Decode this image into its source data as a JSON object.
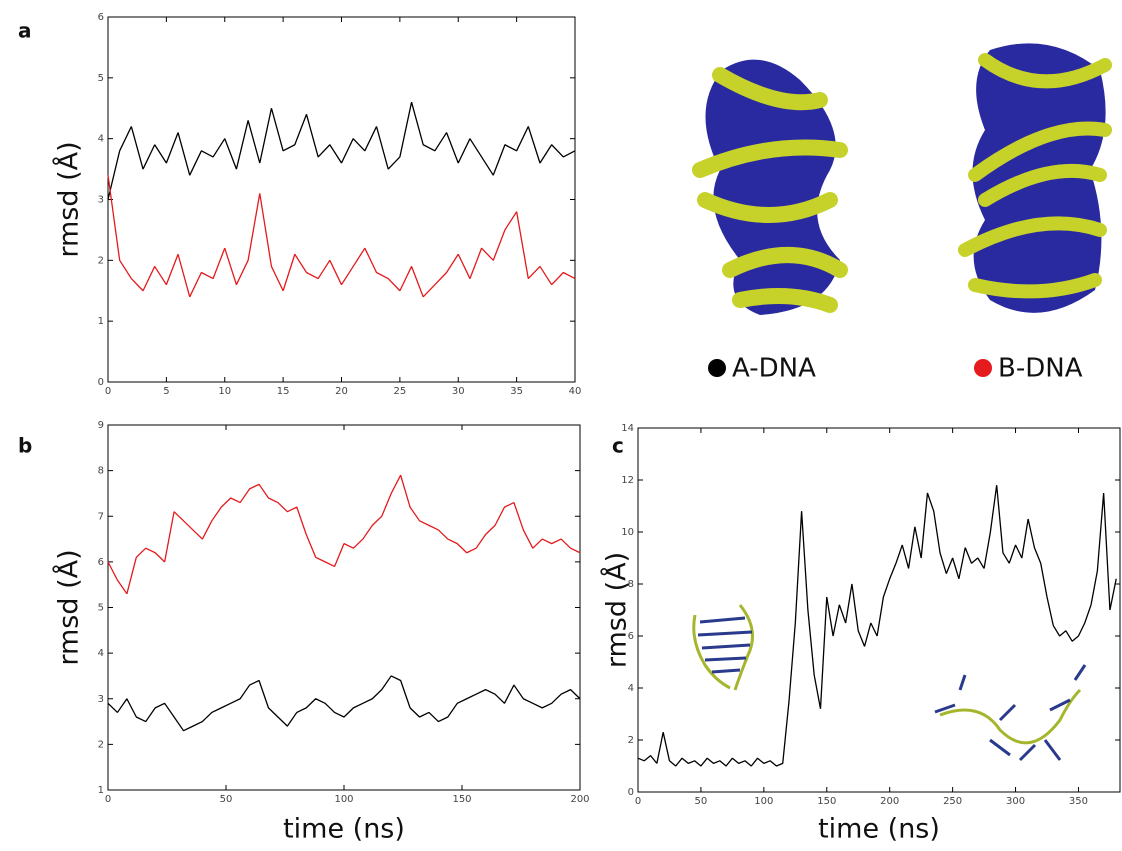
{
  "chart_data": [
    {
      "type": "line",
      "panel_label": "a",
      "ylabel": "rmsd (Å)",
      "xlim": [
        0,
        40
      ],
      "xticks": [
        0,
        5,
        10,
        15,
        20,
        25,
        30,
        35,
        40
      ],
      "ylim": [
        0,
        6
      ],
      "yticks": [
        0,
        1,
        2,
        3,
        4,
        5,
        6
      ],
      "x": [
        0,
        1,
        2,
        3,
        4,
        5,
        6,
        7,
        8,
        9,
        10,
        11,
        12,
        13,
        14,
        15,
        16,
        17,
        18,
        19,
        20,
        21,
        22,
        23,
        24,
        25,
        26,
        27,
        28,
        29,
        30,
        31,
        32,
        33,
        34,
        35,
        36,
        37,
        38,
        39,
        40
      ],
      "series": [
        {
          "name": "A-DNA",
          "color": "#000000",
          "values": [
            3.0,
            3.8,
            4.2,
            3.5,
            3.9,
            3.6,
            4.1,
            3.4,
            3.8,
            3.7,
            4.0,
            3.5,
            4.3,
            3.6,
            4.5,
            3.8,
            3.9,
            4.4,
            3.7,
            3.9,
            3.6,
            4.0,
            3.8,
            4.2,
            3.5,
            3.7,
            4.6,
            3.9,
            3.8,
            4.1,
            3.6,
            4.0,
            3.7,
            3.4,
            3.9,
            3.8,
            4.2,
            3.6,
            3.9,
            3.7,
            3.8
          ]
        },
        {
          "name": "B-DNA",
          "color": "#e41a1c",
          "values": [
            3.4,
            2.0,
            1.7,
            1.5,
            1.9,
            1.6,
            2.1,
            1.4,
            1.8,
            1.7,
            2.2,
            1.6,
            2.0,
            3.1,
            1.9,
            1.5,
            2.1,
            1.8,
            1.7,
            2.0,
            1.6,
            1.9,
            2.2,
            1.8,
            1.7,
            1.5,
            1.9,
            1.4,
            1.6,
            1.8,
            2.1,
            1.7,
            2.2,
            2.0,
            2.5,
            2.8,
            1.7,
            1.9,
            1.6,
            1.8,
            1.7
          ]
        }
      ]
    },
    {
      "type": "line",
      "panel_label": "b",
      "ylabel": "rmsd (Å)",
      "xlabel": "time (ns)",
      "xlim": [
        0,
        200
      ],
      "xticks": [
        0,
        50,
        100,
        150,
        200
      ],
      "ylim": [
        1,
        9
      ],
      "yticks": [
        1,
        2,
        3,
        4,
        5,
        6,
        7,
        8,
        9
      ],
      "x": [
        0,
        4,
        8,
        12,
        16,
        20,
        24,
        28,
        32,
        36,
        40,
        44,
        48,
        52,
        56,
        60,
        64,
        68,
        72,
        76,
        80,
        84,
        88,
        92,
        96,
        100,
        104,
        108,
        112,
        116,
        120,
        124,
        128,
        132,
        136,
        140,
        144,
        148,
        152,
        156,
        160,
        164,
        168,
        172,
        176,
        180,
        184,
        188,
        192,
        196,
        200
      ],
      "series": [
        {
          "color": "#e41a1c",
          "values": [
            6.0,
            5.6,
            5.3,
            6.1,
            6.3,
            6.2,
            6.0,
            7.1,
            6.9,
            6.7,
            6.5,
            6.9,
            7.2,
            7.4,
            7.3,
            7.6,
            7.7,
            7.4,
            7.3,
            7.1,
            7.2,
            6.6,
            6.1,
            6.0,
            5.9,
            6.4,
            6.3,
            6.5,
            6.8,
            7.0,
            7.5,
            7.9,
            7.2,
            6.9,
            6.8,
            6.7,
            6.5,
            6.4,
            6.2,
            6.3,
            6.6,
            6.8,
            7.2,
            7.3,
            6.7,
            6.3,
            6.5,
            6.4,
            6.5,
            6.3,
            6.2
          ]
        },
        {
          "color": "#000000",
          "values": [
            2.9,
            2.7,
            3.0,
            2.6,
            2.5,
            2.8,
            2.9,
            2.6,
            2.3,
            2.4,
            2.5,
            2.7,
            2.8,
            2.9,
            3.0,
            3.3,
            3.4,
            2.8,
            2.6,
            2.4,
            2.7,
            2.8,
            3.0,
            2.9,
            2.7,
            2.6,
            2.8,
            2.9,
            3.0,
            3.2,
            3.5,
            3.4,
            2.8,
            2.6,
            2.7,
            2.5,
            2.6,
            2.9,
            3.0,
            3.1,
            3.2,
            3.1,
            2.9,
            3.3,
            3.0,
            2.9,
            2.8,
            2.9,
            3.1,
            3.2,
            3.0
          ]
        }
      ]
    },
    {
      "type": "line",
      "panel_label": "c",
      "ylabel": "rmsd (Å)",
      "xlabel": "time (ns)",
      "xlim": [
        0,
        383
      ],
      "xticks": [
        0,
        50,
        100,
        150,
        200,
        250,
        300,
        350
      ],
      "ylim": [
        0,
        14
      ],
      "yticks": [
        0,
        2,
        4,
        6,
        8,
        10,
        12,
        14
      ],
      "x": [
        0,
        5,
        10,
        15,
        20,
        25,
        30,
        35,
        40,
        45,
        50,
        55,
        60,
        65,
        70,
        75,
        80,
        85,
        90,
        95,
        100,
        105,
        110,
        115,
        120,
        125,
        130,
        135,
        140,
        145,
        150,
        155,
        160,
        165,
        170,
        175,
        180,
        185,
        190,
        195,
        200,
        205,
        210,
        215,
        220,
        225,
        230,
        235,
        240,
        245,
        250,
        255,
        260,
        265,
        270,
        275,
        280,
        285,
        290,
        295,
        300,
        305,
        310,
        315,
        320,
        325,
        330,
        335,
        340,
        345,
        350,
        355,
        360,
        365,
        370,
        375,
        380
      ],
      "series": [
        {
          "color": "#000000",
          "values": [
            1.3,
            1.2,
            1.4,
            1.1,
            2.3,
            1.2,
            1.0,
            1.3,
            1.1,
            1.2,
            1.0,
            1.3,
            1.1,
            1.2,
            1.0,
            1.3,
            1.1,
            1.2,
            1.0,
            1.3,
            1.1,
            1.2,
            1.0,
            1.1,
            3.5,
            6.5,
            10.8,
            7.0,
            4.5,
            3.2,
            7.5,
            6.0,
            7.2,
            6.5,
            8.0,
            6.2,
            5.6,
            6.5,
            6.0,
            7.5,
            8.2,
            8.8,
            9.5,
            8.6,
            10.2,
            9.0,
            11.5,
            10.8,
            9.2,
            8.4,
            9.0,
            8.2,
            9.4,
            8.8,
            9.0,
            8.6,
            10.0,
            11.8,
            9.2,
            8.8,
            9.5,
            9.0,
            10.5,
            9.4,
            8.8,
            7.5,
            6.4,
            6.0,
            6.2,
            5.8,
            6.0,
            6.5,
            7.2,
            8.5,
            11.5,
            7.0,
            8.2
          ]
        }
      ]
    }
  ]
}
